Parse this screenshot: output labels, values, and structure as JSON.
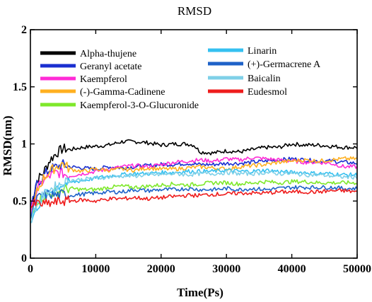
{
  "chart_data": {
    "type": "line",
    "title": "RMSD",
    "xlabel": "Time(Ps)",
    "ylabel": "RMSD(nm)",
    "xlim": [
      0,
      50000
    ],
    "ylim": [
      0,
      2
    ],
    "xticks": [
      0,
      10000,
      20000,
      30000,
      40000,
      50000
    ],
    "yticks": [
      0,
      0.5,
      1,
      1.5,
      2
    ],
    "ytick_labels": [
      "0",
      "0.5",
      "1",
      "1.5",
      "2"
    ],
    "grid": false,
    "legend_position": "top",
    "series": [
      {
        "name": "Alpha-thujene",
        "color": "#000000",
        "points": [
          [
            0,
            0.42
          ],
          [
            1000,
            0.68
          ],
          [
            2000,
            0.75
          ],
          [
            3000,
            0.86
          ],
          [
            4000,
            0.92
          ],
          [
            5000,
            0.96
          ],
          [
            6000,
            0.95
          ],
          [
            8000,
            0.97
          ],
          [
            10000,
            0.98
          ],
          [
            12000,
            0.99
          ],
          [
            14000,
            1.02
          ],
          [
            16000,
            1.02
          ],
          [
            18000,
            1.01
          ],
          [
            20000,
            0.99
          ],
          [
            22000,
            1.0
          ],
          [
            24000,
            1.0
          ],
          [
            25000,
            0.99
          ],
          [
            26000,
            0.93
          ],
          [
            28000,
            0.92
          ],
          [
            30000,
            0.94
          ],
          [
            32000,
            0.93
          ],
          [
            34000,
            0.95
          ],
          [
            36000,
            0.97
          ],
          [
            38000,
            0.97
          ],
          [
            40000,
            1.0
          ],
          [
            42000,
            0.99
          ],
          [
            44000,
            0.99
          ],
          [
            46000,
            0.98
          ],
          [
            48000,
            0.97
          ],
          [
            50000,
            0.97
          ]
        ]
      },
      {
        "name": "Geranyl acetate",
        "color": "#1a2fd0",
        "points": [
          [
            0,
            0.4
          ],
          [
            1000,
            0.65
          ],
          [
            2000,
            0.72
          ],
          [
            3000,
            0.78
          ],
          [
            4000,
            0.8
          ],
          [
            5000,
            0.82
          ],
          [
            6000,
            0.8
          ],
          [
            8000,
            0.79
          ],
          [
            10000,
            0.78
          ],
          [
            12000,
            0.8
          ],
          [
            14000,
            0.79
          ],
          [
            16000,
            0.8
          ],
          [
            18000,
            0.81
          ],
          [
            20000,
            0.82
          ],
          [
            22000,
            0.82
          ],
          [
            24000,
            0.83
          ],
          [
            26000,
            0.82
          ],
          [
            28000,
            0.82
          ],
          [
            30000,
            0.83
          ],
          [
            32000,
            0.83
          ],
          [
            34000,
            0.84
          ],
          [
            36000,
            0.85
          ],
          [
            38000,
            0.86
          ],
          [
            40000,
            0.87
          ],
          [
            42000,
            0.86
          ],
          [
            44000,
            0.85
          ],
          [
            46000,
            0.85
          ],
          [
            48000,
            0.84
          ],
          [
            50000,
            0.83
          ]
        ]
      },
      {
        "name": "Kaempferol",
        "color": "#ff2bd6",
        "points": [
          [
            0,
            0.38
          ],
          [
            1000,
            0.6
          ],
          [
            2000,
            0.68
          ],
          [
            3000,
            0.72
          ],
          [
            4000,
            0.75
          ],
          [
            5000,
            0.74
          ],
          [
            6000,
            0.72
          ],
          [
            8000,
            0.74
          ],
          [
            10000,
            0.76
          ],
          [
            12000,
            0.78
          ],
          [
            14000,
            0.8
          ],
          [
            16000,
            0.81
          ],
          [
            18000,
            0.8
          ],
          [
            20000,
            0.82
          ],
          [
            22000,
            0.84
          ],
          [
            24000,
            0.85
          ],
          [
            26000,
            0.86
          ],
          [
            28000,
            0.85
          ],
          [
            30000,
            0.87
          ],
          [
            32000,
            0.86
          ],
          [
            34000,
            0.88
          ],
          [
            36000,
            0.87
          ],
          [
            38000,
            0.86
          ],
          [
            40000,
            0.85
          ],
          [
            42000,
            0.84
          ],
          [
            44000,
            0.84
          ],
          [
            46000,
            0.83
          ],
          [
            48000,
            0.8
          ],
          [
            50000,
            0.8
          ]
        ]
      },
      {
        "name": "(-)-Gamma-Cadinene",
        "color": "#ffb020",
        "points": [
          [
            0,
            0.35
          ],
          [
            1000,
            0.58
          ],
          [
            2000,
            0.7
          ],
          [
            3000,
            0.76
          ],
          [
            4000,
            0.8
          ],
          [
            5000,
            0.83
          ],
          [
            6000,
            0.78
          ],
          [
            8000,
            0.76
          ],
          [
            10000,
            0.78
          ],
          [
            12000,
            0.77
          ],
          [
            14000,
            0.78
          ],
          [
            16000,
            0.77
          ],
          [
            18000,
            0.79
          ],
          [
            20000,
            0.78
          ],
          [
            22000,
            0.78
          ],
          [
            24000,
            0.79
          ],
          [
            26000,
            0.8
          ],
          [
            28000,
            0.79
          ],
          [
            30000,
            0.78
          ],
          [
            32000,
            0.8
          ],
          [
            34000,
            0.81
          ],
          [
            36000,
            0.82
          ],
          [
            38000,
            0.84
          ],
          [
            40000,
            0.85
          ],
          [
            42000,
            0.86
          ],
          [
            44000,
            0.85
          ],
          [
            46000,
            0.86
          ],
          [
            48000,
            0.87
          ],
          [
            50000,
            0.87
          ]
        ]
      },
      {
        "name": "Kaempferol-3-O-Glucuronide",
        "color": "#7ee82a",
        "points": [
          [
            0,
            0.33
          ],
          [
            1000,
            0.5
          ],
          [
            2000,
            0.54
          ],
          [
            3000,
            0.56
          ],
          [
            4000,
            0.58
          ],
          [
            5000,
            0.6
          ],
          [
            6000,
            0.61
          ],
          [
            8000,
            0.6
          ],
          [
            10000,
            0.6
          ],
          [
            12000,
            0.62
          ],
          [
            14000,
            0.63
          ],
          [
            16000,
            0.62
          ],
          [
            18000,
            0.63
          ],
          [
            20000,
            0.64
          ],
          [
            22000,
            0.65
          ],
          [
            24000,
            0.64
          ],
          [
            26000,
            0.65
          ],
          [
            28000,
            0.66
          ],
          [
            30000,
            0.66
          ],
          [
            32000,
            0.65
          ],
          [
            34000,
            0.66
          ],
          [
            36000,
            0.67
          ],
          [
            38000,
            0.66
          ],
          [
            40000,
            0.67
          ],
          [
            42000,
            0.67
          ],
          [
            44000,
            0.66
          ],
          [
            46000,
            0.66
          ],
          [
            48000,
            0.66
          ],
          [
            50000,
            0.66
          ]
        ]
      },
      {
        "name": "Linarin",
        "color": "#35c0f0",
        "points": [
          [
            0,
            0.3
          ],
          [
            1000,
            0.45
          ],
          [
            2000,
            0.52
          ],
          [
            3000,
            0.58
          ],
          [
            4000,
            0.62
          ],
          [
            5000,
            0.65
          ],
          [
            6000,
            0.66
          ],
          [
            8000,
            0.68
          ],
          [
            10000,
            0.7
          ],
          [
            12000,
            0.72
          ],
          [
            14000,
            0.73
          ],
          [
            16000,
            0.74
          ],
          [
            18000,
            0.74
          ],
          [
            20000,
            0.75
          ],
          [
            22000,
            0.75
          ],
          [
            24000,
            0.76
          ],
          [
            26000,
            0.76
          ],
          [
            28000,
            0.76
          ],
          [
            30000,
            0.77
          ],
          [
            32000,
            0.76
          ],
          [
            34000,
            0.76
          ],
          [
            36000,
            0.77
          ],
          [
            38000,
            0.76
          ],
          [
            40000,
            0.75
          ],
          [
            42000,
            0.75
          ],
          [
            44000,
            0.74
          ],
          [
            46000,
            0.74
          ],
          [
            48000,
            0.73
          ],
          [
            50000,
            0.73
          ]
        ]
      },
      {
        "name": "(+)-Germacrene A",
        "color": "#1e62c8",
        "points": [
          [
            0,
            0.36
          ],
          [
            1000,
            0.52
          ],
          [
            2000,
            0.55
          ],
          [
            3000,
            0.56
          ],
          [
            4000,
            0.55
          ],
          [
            5000,
            0.56
          ],
          [
            6000,
            0.55
          ],
          [
            8000,
            0.56
          ],
          [
            10000,
            0.57
          ],
          [
            12000,
            0.58
          ],
          [
            14000,
            0.58
          ],
          [
            16000,
            0.6
          ],
          [
            18000,
            0.59
          ],
          [
            20000,
            0.6
          ],
          [
            22000,
            0.6
          ],
          [
            24000,
            0.61
          ],
          [
            26000,
            0.6
          ],
          [
            28000,
            0.6
          ],
          [
            30000,
            0.61
          ],
          [
            32000,
            0.6
          ],
          [
            34000,
            0.61
          ],
          [
            36000,
            0.6
          ],
          [
            38000,
            0.61
          ],
          [
            40000,
            0.62
          ],
          [
            42000,
            0.62
          ],
          [
            44000,
            0.62
          ],
          [
            46000,
            0.62
          ],
          [
            48000,
            0.61
          ],
          [
            50000,
            0.61
          ]
        ]
      },
      {
        "name": "Baicalin",
        "color": "#7fd0e8",
        "points": [
          [
            0,
            0.32
          ],
          [
            1000,
            0.48
          ],
          [
            2000,
            0.55
          ],
          [
            3000,
            0.6
          ],
          [
            4000,
            0.63
          ],
          [
            5000,
            0.66
          ],
          [
            6000,
            0.68
          ],
          [
            8000,
            0.69
          ],
          [
            10000,
            0.7
          ],
          [
            12000,
            0.71
          ],
          [
            14000,
            0.72
          ],
          [
            16000,
            0.72
          ],
          [
            18000,
            0.73
          ],
          [
            20000,
            0.73
          ],
          [
            22000,
            0.74
          ],
          [
            24000,
            0.73
          ],
          [
            26000,
            0.74
          ],
          [
            28000,
            0.74
          ],
          [
            30000,
            0.75
          ],
          [
            32000,
            0.74
          ],
          [
            34000,
            0.74
          ],
          [
            36000,
            0.75
          ],
          [
            38000,
            0.74
          ],
          [
            40000,
            0.74
          ],
          [
            42000,
            0.73
          ],
          [
            44000,
            0.73
          ],
          [
            46000,
            0.72
          ],
          [
            48000,
            0.71
          ],
          [
            50000,
            0.71
          ]
        ]
      },
      {
        "name": "Eudesmol",
        "color": "#ee1c1c",
        "points": [
          [
            0,
            0.45
          ],
          [
            1000,
            0.48
          ],
          [
            2000,
            0.47
          ],
          [
            3000,
            0.48
          ],
          [
            4000,
            0.49
          ],
          [
            5000,
            0.5
          ],
          [
            6000,
            0.5
          ],
          [
            8000,
            0.51
          ],
          [
            10000,
            0.5
          ],
          [
            12000,
            0.52
          ],
          [
            14000,
            0.52
          ],
          [
            16000,
            0.53
          ],
          [
            18000,
            0.52
          ],
          [
            20000,
            0.53
          ],
          [
            22000,
            0.54
          ],
          [
            24000,
            0.55
          ],
          [
            26000,
            0.55
          ],
          [
            28000,
            0.56
          ],
          [
            30000,
            0.56
          ],
          [
            32000,
            0.57
          ],
          [
            34000,
            0.57
          ],
          [
            36000,
            0.57
          ],
          [
            38000,
            0.58
          ],
          [
            40000,
            0.58
          ],
          [
            42000,
            0.58
          ],
          [
            44000,
            0.58
          ],
          [
            46000,
            0.59
          ],
          [
            48000,
            0.59
          ],
          [
            50000,
            0.58
          ]
        ]
      }
    ]
  }
}
